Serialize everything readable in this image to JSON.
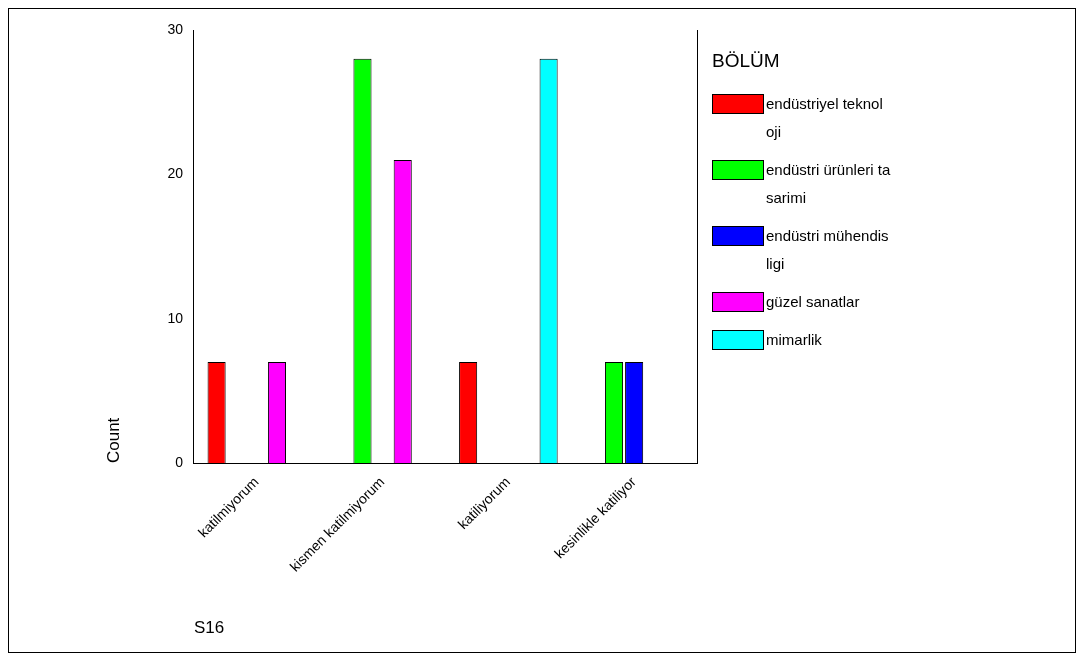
{
  "chart_data": {
    "type": "bar",
    "categories": [
      "katilmiyorum",
      "kismen katilmiyorum",
      "katiliyorum",
      "kesinlikle katiliyor"
    ],
    "series": [
      {
        "name": "endüstriyel teknoloji",
        "color": "#ff0000",
        "values": [
          7,
          null,
          7,
          null
        ]
      },
      {
        "name": "endüstri ürünleri tasarimi",
        "color": "#00ff00",
        "values": [
          null,
          28,
          null,
          7
        ]
      },
      {
        "name": "endüstri mühendisligi",
        "color": "#0000ff",
        "values": [
          null,
          null,
          null,
          7
        ]
      },
      {
        "name": "güzel sanatlar",
        "color": "#ff00ff",
        "values": [
          7,
          21,
          null,
          null
        ]
      },
      {
        "name": "mimarlik",
        "color": "#00ffff",
        "values": [
          null,
          null,
          28,
          null
        ]
      }
    ],
    "xlabel": "S16",
    "ylabel": "Count",
    "legend_title": "BÖLÜM",
    "ylim": [
      0,
      30
    ],
    "yticks": [
      0,
      10,
      20,
      30
    ],
    "grid": false,
    "legend": "right"
  }
}
